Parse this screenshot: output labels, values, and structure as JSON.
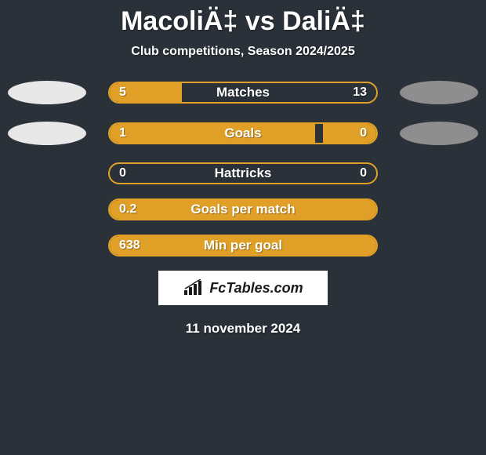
{
  "title": "MacoliÄ‡ vs DaliÄ‡",
  "subtitle": "Club competitions, Season 2024/2025",
  "date": "11 november 2024",
  "badge_text": "FcTables.com",
  "colors": {
    "background": "#2a3139",
    "bar_border": "#e0a028",
    "bar_fill": "#e0a028",
    "ellipse_left": "#e8e8e8",
    "ellipse_right": "#8e8e8e",
    "text": "#ffffff",
    "badge_bg": "#ffffff",
    "badge_text": "#1a1a1a"
  },
  "bars": [
    {
      "label": "Matches",
      "left_val": "5",
      "right_val": "13",
      "left_pct": 27,
      "right_pct": 0,
      "show_ellipses": true
    },
    {
      "label": "Goals",
      "left_val": "1",
      "right_val": "0",
      "left_pct": 77,
      "right_pct": 20,
      "show_ellipses": true
    },
    {
      "label": "Hattricks",
      "left_val": "0",
      "right_val": "0",
      "left_pct": 0,
      "right_pct": 0,
      "show_ellipses": false
    },
    {
      "label": "Goals per match",
      "left_val": "0.2",
      "right_val": "",
      "left_pct": 100,
      "right_pct": 0,
      "show_ellipses": false
    },
    {
      "label": "Min per goal",
      "left_val": "638",
      "right_val": "",
      "left_pct": 100,
      "right_pct": 0,
      "show_ellipses": false
    }
  ]
}
